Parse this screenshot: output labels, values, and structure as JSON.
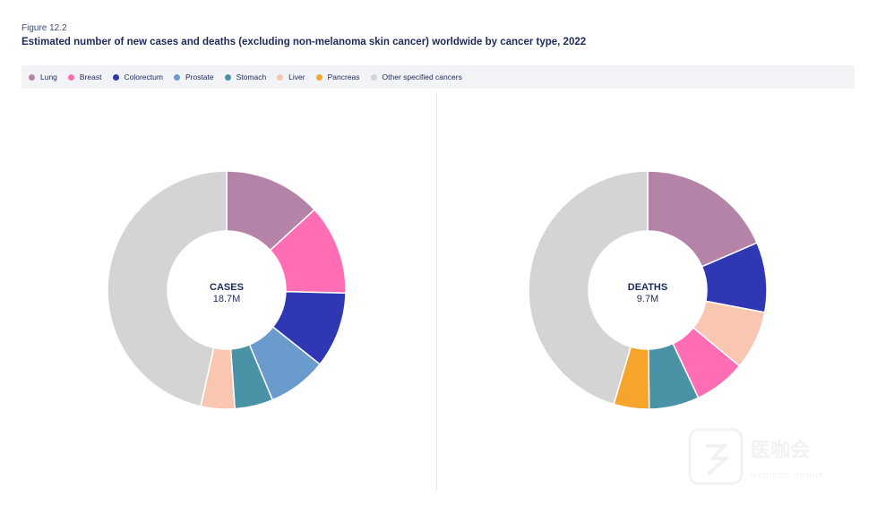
{
  "figure_label": "Figure 12.2",
  "title": "Estimated number of new cases and deaths (excluding non-melanoma skin cancer) worldwide by cancer type, 2022",
  "legend": [
    {
      "label": "Lung",
      "color": "#b683a8"
    },
    {
      "label": "Breast",
      "color": "#ff6eb4"
    },
    {
      "label": "Colorectum",
      "color": "#2f37b3"
    },
    {
      "label": "Prostate",
      "color": "#6b9bcc"
    },
    {
      "label": "Stomach",
      "color": "#4a93a6"
    },
    {
      "label": "Liver",
      "color": "#f9c6b1"
    },
    {
      "label": "Pancreas",
      "color": "#f6a42b"
    },
    {
      "label": "Other specified cancers",
      "color": "#d4d4d4"
    }
  ],
  "chart_data": [
    {
      "type": "pie",
      "center_title": "CASES",
      "center_value": "18.7M",
      "slices": [
        {
          "category": "Lung",
          "value": 13.2
        },
        {
          "category": "Breast",
          "value": 12.2
        },
        {
          "category": "Colorectum",
          "value": 10.3
        },
        {
          "category": "Prostate",
          "value": 8.0
        },
        {
          "category": "Stomach",
          "value": 5.2
        },
        {
          "category": "Liver",
          "value": 4.6
        },
        {
          "category": "Other specified cancers",
          "value": 46.5
        }
      ]
    },
    {
      "type": "pie",
      "center_title": "DEATHS",
      "center_value": "9.7M",
      "slices": [
        {
          "category": "Lung",
          "value": 18.5
        },
        {
          "category": "Colorectum",
          "value": 9.5
        },
        {
          "category": "Liver",
          "value": 8.0
        },
        {
          "category": "Breast",
          "value": 7.0
        },
        {
          "category": "Stomach",
          "value": 6.8
        },
        {
          "category": "Pancreas",
          "value": 4.8
        },
        {
          "category": "Other specified cancers",
          "value": 45.4
        }
      ]
    }
  ],
  "watermark": {
    "text": "医咖会",
    "sub": "MEDIECO GROUP"
  }
}
